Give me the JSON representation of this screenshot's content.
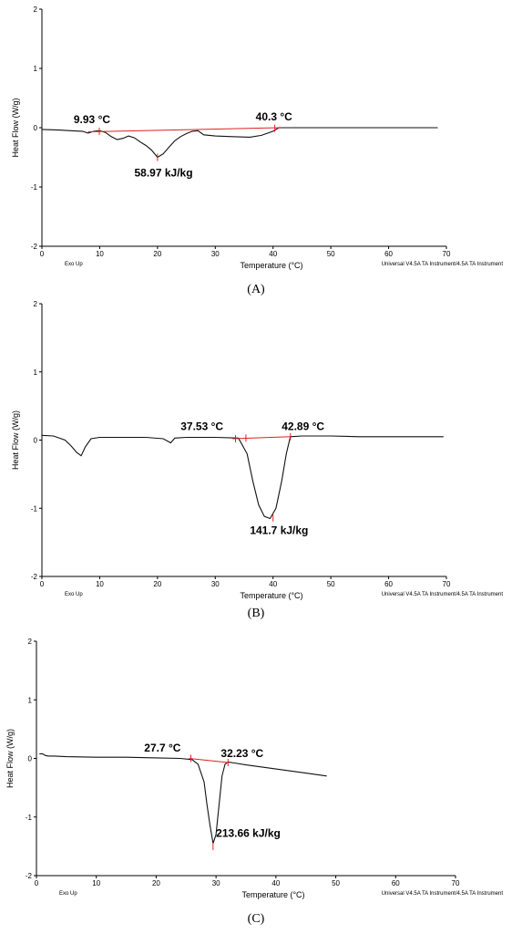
{
  "chart_data": [
    {
      "type": "line",
      "panel_label": "(A)",
      "xlabel": "Temperature (°C)",
      "ylabel": "Heat Flow (W/g)",
      "xlim": [
        0,
        70
      ],
      "ylim": [
        -2,
        2
      ],
      "xticks": [
        "0",
        "10",
        "20",
        "30",
        "40",
        "50",
        "60",
        "70"
      ],
      "yticks": [
        "2",
        "1",
        "0",
        "-1",
        "-2"
      ],
      "corner_left": "Exo Up",
      "corner_right": "Universal V4.5A TA Instrument/4.5A TA Instrument",
      "series": [
        {
          "x": [
            0,
            3,
            5,
            7,
            8,
            9,
            10,
            11,
            12,
            13,
            14,
            15,
            16,
            17,
            18,
            19,
            20,
            21,
            22,
            23,
            24,
            25,
            26,
            27,
            28,
            30,
            33,
            36,
            38,
            40,
            41,
            45,
            52,
            60,
            68.5
          ],
          "y": [
            -0.03,
            -0.04,
            -0.05,
            -0.06,
            -0.09,
            -0.06,
            -0.05,
            -0.08,
            -0.15,
            -0.2,
            -0.18,
            -0.14,
            -0.17,
            -0.24,
            -0.3,
            -0.38,
            -0.5,
            -0.44,
            -0.33,
            -0.22,
            -0.15,
            -0.1,
            -0.06,
            -0.05,
            -0.12,
            -0.14,
            -0.15,
            -0.16,
            -0.13,
            -0.06,
            0.0,
            0.0,
            0.0,
            0.0,
            0.0
          ]
        }
      ],
      "baseline": {
        "x": [
          8,
          41
        ],
        "y": [
          -0.07,
          0.0
        ]
      },
      "annotations": [
        {
          "text": "9.93 °C",
          "x": 5.5,
          "y": 0.08
        },
        {
          "text": "40.3 °C",
          "x": 37,
          "y": 0.12
        },
        {
          "text": "58.97 kJ/kg",
          "x": 16,
          "y": -0.82
        }
      ],
      "markers": [
        {
          "x": 9.93,
          "y": -0.06
        },
        {
          "x": 40.3,
          "y": -0.01
        },
        {
          "x": 20,
          "y": -0.5
        }
      ]
    },
    {
      "type": "line",
      "panel_label": "(B)",
      "xlabel": "Temperature (°C)",
      "ylabel": "Heat Flow (W/g)",
      "xlim": [
        0,
        70
      ],
      "ylim": [
        -2,
        2
      ],
      "xticks": [
        "0",
        "10",
        "20",
        "30",
        "40",
        "50",
        "60",
        "70"
      ],
      "yticks": [
        "2",
        "1",
        "0",
        "-1",
        "-2"
      ],
      "corner_left": "Exo Up",
      "corner_right": "Universal V4.5A TA Instrument/4.5A TA Instrument",
      "series": [
        {
          "x": [
            0,
            2,
            4,
            5,
            6,
            6.8,
            7.5,
            8.5,
            10,
            14,
            18,
            21,
            22.3,
            23,
            25,
            30,
            34,
            35.5,
            36.5,
            37.5,
            38.5,
            39.5,
            40.5,
            41.5,
            42.3,
            43,
            45,
            50,
            55,
            60,
            69.5
          ],
          "y": [
            0.07,
            0.06,
            0.0,
            -0.08,
            -0.18,
            -0.23,
            -0.1,
            0.02,
            0.04,
            0.04,
            0.04,
            0.02,
            -0.04,
            0.03,
            0.04,
            0.04,
            0.03,
            -0.2,
            -0.6,
            -0.95,
            -1.12,
            -1.15,
            -1.0,
            -0.6,
            -0.2,
            0.05,
            0.06,
            0.06,
            0.05,
            0.05,
            0.05
          ]
        }
      ],
      "baseline": {
        "x": [
          33,
          43
        ],
        "y": [
          0.02,
          0.05
        ]
      },
      "annotations": [
        {
          "text": "37.53  °C",
          "x": 24,
          "y": 0.15
        },
        {
          "text": "42.89  °C",
          "x": 41.5,
          "y": 0.15
        },
        {
          "text": "141.7 kJ/kg",
          "x": 36,
          "y": -1.38
        }
      ],
      "markers": [
        {
          "x": 33.5,
          "y": 0.02
        },
        {
          "x": 35.3,
          "y": 0.03
        },
        {
          "x": 43,
          "y": 0.05
        },
        {
          "x": 40,
          "y": -1.14
        }
      ]
    },
    {
      "type": "line",
      "panel_label": "(C)",
      "xlabel": "Temperature (°C)",
      "ylabel": "Heat Flow (W/g)",
      "xlim": [
        0,
        70
      ],
      "ylim": [
        -2,
        2
      ],
      "xticks": [
        "0",
        "10",
        "20",
        "30",
        "40",
        "50",
        "60",
        "70"
      ],
      "yticks": [
        "2",
        "1",
        "0",
        "-1",
        "-2"
      ],
      "corner_left": "Exo Up",
      "corner_right": "Universal V4.5A TA Instrument/4.5A TA Instrument",
      "series": [
        {
          "x": [
            0.5,
            1,
            1.5,
            2,
            3,
            5,
            10,
            15,
            20,
            24,
            26,
            27,
            28,
            28.5,
            29,
            29.5,
            30,
            30.5,
            31,
            31.5,
            32,
            35,
            40,
            45,
            48.5
          ],
          "y": [
            0.08,
            0.08,
            0.05,
            0.04,
            0.04,
            0.03,
            0.02,
            0.02,
            0.01,
            0.0,
            -0.02,
            -0.1,
            -0.4,
            -0.8,
            -1.15,
            -1.45,
            -1.3,
            -0.8,
            -0.3,
            -0.1,
            -0.06,
            -0.11,
            -0.18,
            -0.25,
            -0.3
          ]
        }
      ],
      "baseline": {
        "x": [
          25.5,
          32
        ],
        "y": [
          0.0,
          -0.07
        ]
      },
      "annotations": [
        {
          "text": "27.7  °C",
          "x": 18,
          "y": 0.12
        },
        {
          "text": "32.23 °C",
          "x": 30.8,
          "y": 0.02
        },
        {
          "text": "213.66 kJ/kg",
          "x": 30,
          "y": -1.34
        }
      ],
      "markers": [
        {
          "x": 25.8,
          "y": 0.0
        },
        {
          "x": 32,
          "y": -0.07
        },
        {
          "x": 29.5,
          "y": -1.5
        }
      ]
    }
  ]
}
